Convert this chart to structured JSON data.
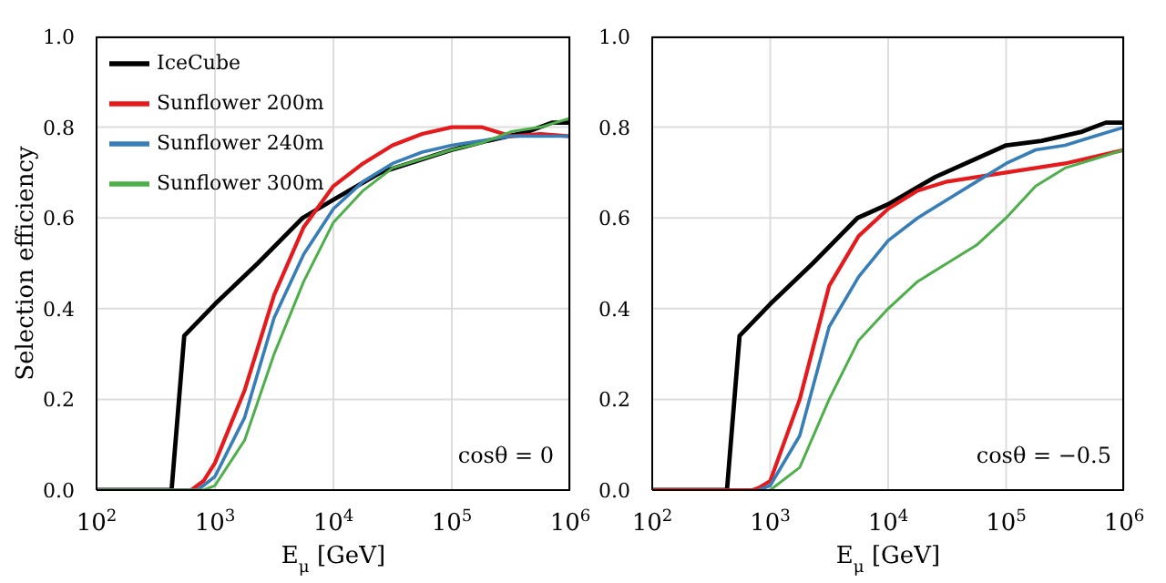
{
  "chart_data": [
    {
      "type": "line",
      "xlabel": "E$_{μ}$ [GeV]",
      "ylabel": "Selection efficiency",
      "log": "x",
      "grid": true,
      "legend": "top left",
      "annotations": [
        "cosθ = 0"
      ],
      "xlim": [
        100,
        1000000
      ],
      "xticks": [
        {
          "value": 100,
          "label": "10$^{2}$"
        },
        {
          "value": 1000,
          "label": "10$^{3}$"
        },
        {
          "value": 10000,
          "label": "10$^{4}$"
        },
        {
          "value": 100000,
          "label": "10$^{5}$"
        },
        {
          "value": 1000000,
          "label": "10$^{6}$"
        }
      ],
      "ylim": [
        0,
        1
      ],
      "yticks": [
        {
          "value": 0,
          "label": "0.0"
        },
        {
          "value": 0.2,
          "label": "0.2"
        },
        {
          "value": 0.4,
          "label": "0.4"
        },
        {
          "value": 0.6,
          "label": "0.6"
        },
        {
          "value": 0.8,
          "label": "0.8"
        },
        {
          "value": 1,
          "label": "1.0"
        }
      ],
      "series": [
        {
          "name": "IceCube",
          "color": "#000000",
          "x": [
            100,
            430,
            550,
            1000,
            2300,
            5500,
            10000,
            25000,
            100000,
            200000,
            440000,
            700000,
            1000000
          ],
          "values": [
            0,
            0,
            0.34,
            0.41,
            0.5,
            0.6,
            0.64,
            0.7,
            0.75,
            0.77,
            0.79,
            0.81,
            0.81
          ]
        },
        {
          "name": "Sunflower 200m",
          "color": "#e41a1c",
          "x": [
            100,
            630,
            710,
            800,
            1000,
            1780,
            3160,
            5620,
            10000,
            17800,
            31600,
            56200,
            100000,
            178000,
            316000,
            562000,
            1000000
          ],
          "values": [
            0,
            0,
            0.01,
            0.02,
            0.06,
            0.22,
            0.43,
            0.58,
            0.67,
            0.72,
            0.76,
            0.785,
            0.8,
            0.8,
            0.78,
            0.785,
            0.78
          ]
        },
        {
          "name": "Sunflower 240m",
          "color": "#377eb8",
          "x": [
            100,
            630,
            710,
            800,
            1000,
            1780,
            3160,
            5620,
            10000,
            17800,
            31600,
            56200,
            100000,
            178000,
            316000,
            562000,
            1000000
          ],
          "values": [
            0,
            0,
            0,
            0.01,
            0.03,
            0.16,
            0.38,
            0.52,
            0.62,
            0.68,
            0.72,
            0.745,
            0.76,
            0.77,
            0.78,
            0.78,
            0.78
          ]
        },
        {
          "name": "Sunflower 300m",
          "color": "#4daf4a",
          "x": [
            100,
            630,
            710,
            800,
            1000,
            1780,
            3160,
            5620,
            10000,
            17800,
            31600,
            56200,
            100000,
            178000,
            316000,
            562000,
            1000000
          ],
          "values": [
            0,
            0,
            0,
            0,
            0.01,
            0.11,
            0.3,
            0.46,
            0.59,
            0.66,
            0.71,
            0.73,
            0.75,
            0.765,
            0.79,
            0.8,
            0.82
          ]
        }
      ]
    },
    {
      "type": "line",
      "xlabel": "E$_{μ}$ [GeV]",
      "log": "x",
      "grid": true,
      "annotations": [
        "cosθ = −0.5"
      ],
      "xlim": [
        100,
        1000000
      ],
      "xticks": [
        {
          "value": 100,
          "label": "10$^{2}$"
        },
        {
          "value": 1000,
          "label": "10$^{3}$"
        },
        {
          "value": 10000,
          "label": "10$^{4}$"
        },
        {
          "value": 100000,
          "label": "10$^{5}$"
        },
        {
          "value": 1000000,
          "label": "10$^{6}$"
        }
      ],
      "ylim": [
        0,
        1
      ],
      "yticks": [
        {
          "value": 0,
          "label": "0.0"
        },
        {
          "value": 0.2,
          "label": "0.2"
        },
        {
          "value": 0.4,
          "label": "0.4"
        },
        {
          "value": 0.6,
          "label": "0.6"
        },
        {
          "value": 0.8,
          "label": "0.8"
        },
        {
          "value": 1,
          "label": "1.0"
        }
      ],
      "series": [
        {
          "color": "#000000",
          "x": [
            100,
            430,
            550,
            1000,
            2300,
            5500,
            10000,
            25000,
            100000,
            200000,
            440000,
            700000,
            1000000
          ],
          "values": [
            0,
            0,
            0.34,
            0.41,
            0.5,
            0.6,
            0.63,
            0.69,
            0.76,
            0.77,
            0.79,
            0.81,
            0.81
          ]
        },
        {
          "color": "#e41a1c",
          "x": [
            100,
            630,
            710,
            800,
            1000,
            1780,
            3160,
            5620,
            10000,
            17800,
            31600,
            56200,
            100000,
            178000,
            316000,
            562000,
            1000000
          ],
          "values": [
            0,
            0,
            0,
            0.005,
            0.02,
            0.2,
            0.45,
            0.56,
            0.62,
            0.66,
            0.68,
            0.69,
            0.7,
            0.71,
            0.72,
            0.735,
            0.75
          ]
        },
        {
          "color": "#377eb8",
          "x": [
            800,
            1000,
            1780,
            3160,
            5620,
            10000,
            17800,
            31600,
            56200,
            100000,
            178000,
            316000,
            562000,
            1000000
          ],
          "values": [
            0,
            0.01,
            0.12,
            0.36,
            0.47,
            0.55,
            0.6,
            0.64,
            0.68,
            0.72,
            0.75,
            0.76,
            0.78,
            0.8
          ]
        },
        {
          "color": "#4daf4a",
          "x": [
            1000,
            1780,
            3160,
            5620,
            10000,
            17800,
            31600,
            56200,
            100000,
            178000,
            316000,
            562000,
            1000000
          ],
          "values": [
            0,
            0.05,
            0.2,
            0.33,
            0.4,
            0.46,
            0.5,
            0.54,
            0.6,
            0.67,
            0.71,
            0.73,
            0.75
          ]
        }
      ]
    }
  ]
}
